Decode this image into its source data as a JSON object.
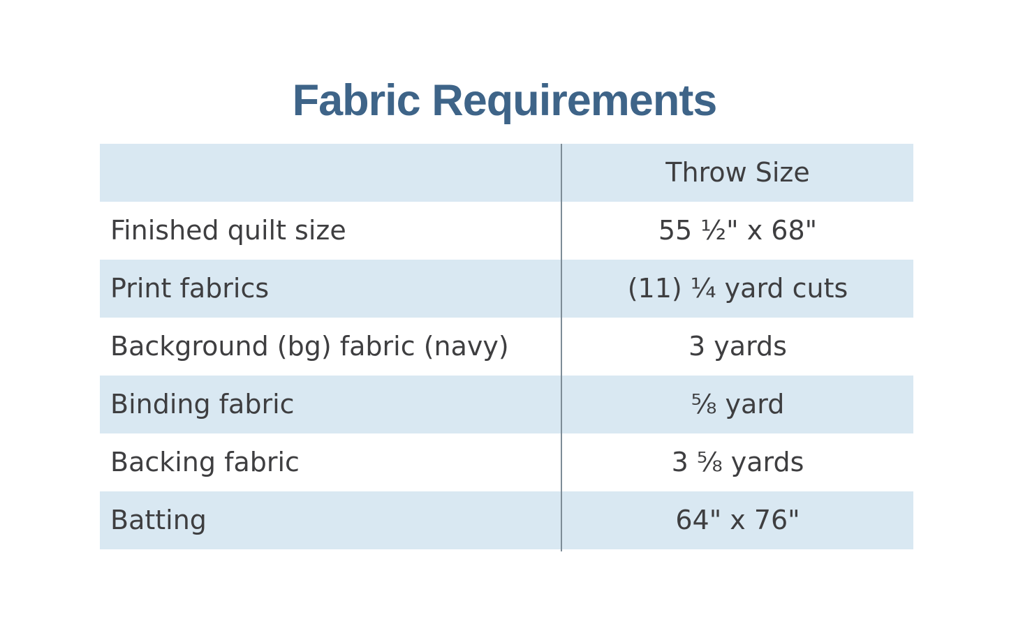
{
  "page": {
    "title": "Fabric Requirements"
  },
  "table": {
    "header": {
      "label_col": "",
      "value_col": "Throw Size"
    },
    "rows": [
      {
        "label": "Finished quilt size",
        "value": "55 ½\" x 68\""
      },
      {
        "label": "Print fabrics",
        "value": "(11) ¼ yard cuts"
      },
      {
        "label": "Background (bg) fabric (navy)",
        "value": "3 yards"
      },
      {
        "label": "Binding fabric",
        "value": "⅝ yard"
      },
      {
        "label": "Backing fabric",
        "value": "3 ⅝ yards"
      },
      {
        "label": "Batting",
        "value": "64\" x 76\""
      }
    ]
  },
  "colors": {
    "title": "#3e6488",
    "text": "#3e3e40",
    "row_highlight": "#d9e8f2",
    "divider": "#7d8c97",
    "background": "#ffffff"
  }
}
